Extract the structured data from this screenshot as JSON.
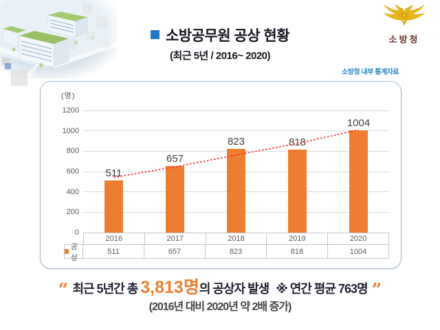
{
  "header": {
    "title": "소방공무원 공상 현황",
    "subtitle": "(최근 5년 / 2016~ 2020)",
    "source_note": "소방청 내부 통계자료",
    "logo_label": "소방청"
  },
  "colors": {
    "accent_blue": "#1f78c5",
    "bar_orange": "#ed7d31",
    "trend_red": "#ff1f1f",
    "panel_border": "#a3bbd0",
    "grid_gray": "#d9d9d9",
    "axis_text": "#595959",
    "logo_gold": "#e7b517",
    "logo_maroon": "#6b352b"
  },
  "chart_data": {
    "type": "bar",
    "title": "소방공무원 공상 현황 (최근 5년 / 2016~ 2020)",
    "unit_label": "(명)",
    "categories": [
      "2016",
      "2017",
      "2018",
      "2019",
      "2020"
    ],
    "series": [
      {
        "name": "공상",
        "values": [
          511,
          657,
          823,
          818,
          1004
        ],
        "color": "#ed7d31"
      }
    ],
    "data_labels": [
      "511",
      "657",
      "823",
      "818",
      "1004"
    ],
    "ylim": [
      0,
      1200
    ],
    "yticks": [
      0,
      200,
      400,
      600,
      800,
      1000,
      1200
    ],
    "grid": true,
    "legend_label": "공상",
    "legend_position": "data-table-left",
    "data_table": true,
    "trendline": {
      "style": "dotted",
      "color": "#ff1f1f",
      "values": [
        542,
        645,
        762,
        875,
        1010
      ]
    }
  },
  "footer": {
    "quote_open": "“",
    "quote_close": "”",
    "prefix": "최근 5년간 총 ",
    "highlight": "3,813명",
    "suffix": "의 공상자 발생",
    "note": "※ 연간 평균 763명",
    "subtext": "(2016년 대비 2020년 약 2배 증가)"
  }
}
